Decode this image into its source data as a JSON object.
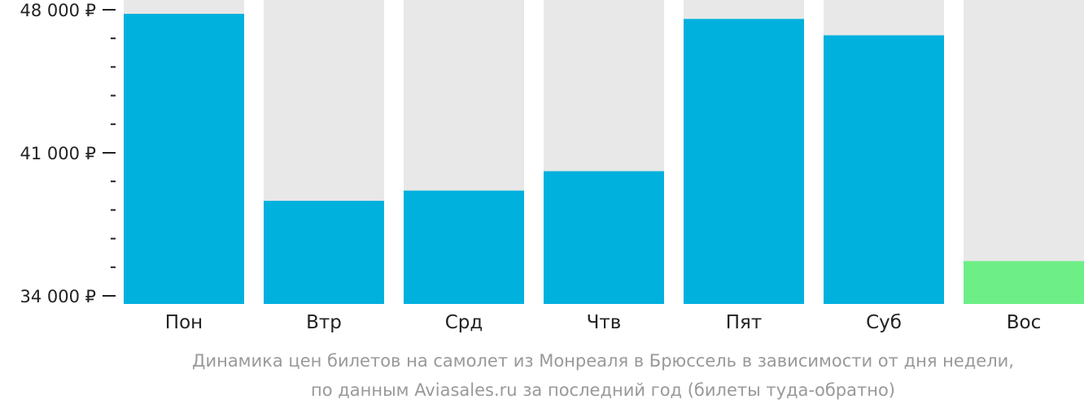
{
  "chart_data": {
    "type": "bar",
    "categories": [
      "Пон",
      "Втр",
      "Срд",
      "Чтв",
      "Пят",
      "Суб",
      "Вос"
    ],
    "values": [
      47800,
      38650,
      39150,
      40100,
      47550,
      46750,
      35700
    ],
    "ylim": [
      34000,
      48000
    ],
    "y_tick_labels": [
      "48 000 ₽",
      "41 000 ₽",
      "34 000 ₽"
    ],
    "y_tick_values": [
      48000,
      41000,
      34000
    ],
    "minor_ticks_between": 4,
    "highlight_index": 6,
    "colors": {
      "bar": "#00b0dd",
      "highlight": "#6eee87",
      "background_column": "#e8e8e8",
      "tick": "#222222"
    }
  },
  "caption": {
    "line1": "Динамика цен билетов на самолет из Монреаля в Брюссель в зависимости от дня недели,",
    "line2": "по данным Aviasales.ru за последний год (билеты туда-обратно)"
  }
}
